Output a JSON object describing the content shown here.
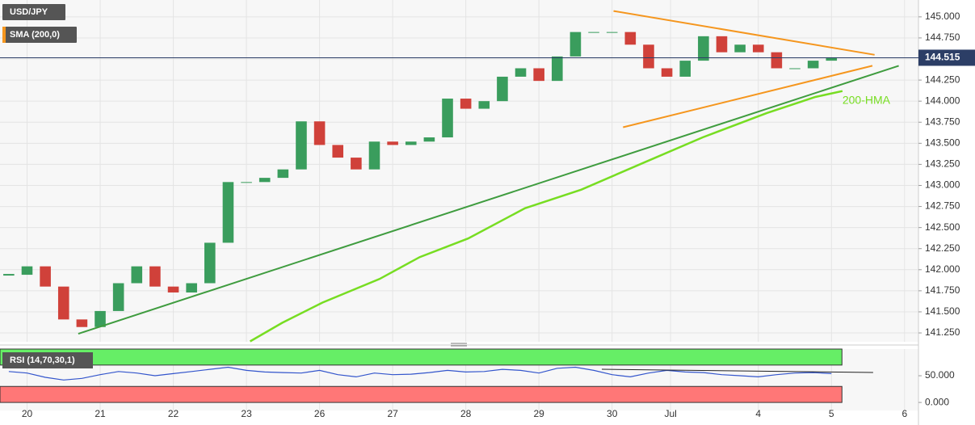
{
  "chart_data": [
    {
      "type": "candlestick",
      "labels": [
        "USD/JPY",
        "SMA (200,0)"
      ],
      "up_color": "#3a9d5d",
      "down_color": "#d0413a",
      "x": [
        -0.25,
        0,
        0.25,
        0.5,
        0.75,
        1,
        1.25,
        1.5,
        1.75,
        2,
        2.25,
        2.5,
        2.75,
        3,
        3.25,
        3.5,
        3.75,
        4,
        4.25,
        4.5,
        4.75,
        5,
        5.25,
        5.5,
        5.75,
        6,
        6.25,
        6.5,
        6.75,
        7,
        7.25,
        7.5,
        7.75,
        8,
        8.25,
        8.5,
        8.75,
        9,
        9.25,
        9.5,
        9.75,
        10,
        10.25,
        10.5,
        10.75,
        11
      ],
      "values": [
        141.94,
        142.04,
        141.8,
        141.41,
        141.32,
        141.51,
        141.84,
        142.04,
        141.8,
        141.73,
        141.84,
        142.32,
        143.04,
        143.04,
        143.09,
        143.19,
        143.76,
        143.48,
        143.33,
        143.19,
        143.52,
        143.48,
        143.52,
        143.57,
        144.03,
        143.91,
        144.0,
        144.29,
        144.39,
        144.24,
        144.53,
        144.82,
        144.82,
        144.82,
        144.67,
        144.39,
        144.29,
        144.48,
        144.77,
        144.58,
        144.67,
        144.58,
        144.39,
        144.39,
        144.48,
        144.52
      ],
      "xlim": [
        -0.37,
        12.19
      ],
      "ylim": [
        141.145,
        145.2
      ],
      "yticks": [
        {
          "value": 141.25,
          "label": "141.250"
        },
        {
          "value": 141.5,
          "label": "141.500"
        },
        {
          "value": 141.75,
          "label": "141.750"
        },
        {
          "value": 142,
          "label": "142.000"
        },
        {
          "value": 142.25,
          "label": "142.250"
        },
        {
          "value": 142.5,
          "label": "142.500"
        },
        {
          "value": 142.75,
          "label": "142.750"
        },
        {
          "value": 143,
          "label": "143.000"
        },
        {
          "value": 143.25,
          "label": "143.250"
        },
        {
          "value": 143.5,
          "label": "143.500"
        },
        {
          "value": 143.75,
          "label": "143.750"
        },
        {
          "value": 144,
          "label": "144.000"
        },
        {
          "value": 144.25,
          "label": "144.250"
        },
        {
          "value": 144.5,
          "label": "144.500"
        },
        {
          "value": 144.75,
          "label": "144.750"
        },
        {
          "value": 145,
          "label": "145.000"
        }
      ],
      "grid": true,
      "last_price": 144.515,
      "trend_lines": [
        {
          "color": "#f5961e",
          "x": [
            8.02,
            11.59
          ],
          "values": [
            145.07,
            144.55
          ]
        },
        {
          "color": "#f5961e",
          "x": [
            8.15,
            11.56
          ],
          "values": [
            143.69,
            144.42
          ]
        },
        {
          "color": "#3f9c3f",
          "x": [
            0.7,
            11.92
          ],
          "values": [
            141.24,
            144.42
          ]
        }
      ],
      "series": [
        {
          "name": "200-HMA",
          "color": "#77dd22",
          "x": [
            3.05,
            3.49,
            4.04,
            4.82,
            5.37,
            6.03,
            6.81,
            7.58,
            8.46,
            9.24,
            10.12,
            10.78,
            11.15
          ],
          "values": [
            141.15,
            141.37,
            141.61,
            141.89,
            142.15,
            142.37,
            142.73,
            142.95,
            143.28,
            143.57,
            143.86,
            144.05,
            144.12
          ]
        }
      ]
    },
    {
      "type": "rsi",
      "title": "RSI (14,70,30,1)",
      "color": "#3355cc",
      "x": [
        -0.25,
        0,
        0.25,
        0.5,
        0.75,
        1,
        1.25,
        1.5,
        1.75,
        2,
        2.25,
        2.5,
        2.75,
        3,
        3.25,
        3.5,
        3.75,
        4,
        4.25,
        4.5,
        4.75,
        5,
        5.25,
        5.5,
        5.75,
        6,
        6.25,
        6.5,
        6.75,
        7,
        7.25,
        7.5,
        7.75,
        8,
        8.25,
        8.5,
        8.75,
        9,
        9.25,
        9.5,
        9.75,
        10,
        10.25,
        10.5,
        10.75,
        11
      ],
      "values": [
        58,
        55,
        47,
        42,
        45,
        52,
        58,
        55,
        50,
        54,
        58,
        62,
        66,
        60,
        57,
        56,
        55,
        60,
        52,
        48,
        55,
        52,
        53,
        56,
        60,
        57,
        58,
        62,
        60,
        55,
        64,
        66,
        60,
        52,
        48,
        55,
        60,
        57,
        56,
        52,
        50,
        48,
        52,
        55,
        56,
        54
      ],
      "overbought": 70,
      "oversold": 30,
      "xlim": [
        -0.37,
        12.19
      ],
      "ylim": [
        -15,
        100
      ],
      "yticks": [
        {
          "value": 50,
          "label": "50.000"
        },
        {
          "value": 0,
          "label": "0.000"
        }
      ],
      "xticks": [
        {
          "value": 0,
          "label": "20"
        },
        {
          "value": 1,
          "label": "21"
        },
        {
          "value": 2,
          "label": "22"
        },
        {
          "value": 3,
          "label": "23"
        },
        {
          "value": 4,
          "label": "26"
        },
        {
          "value": 5,
          "label": "27"
        },
        {
          "value": 6,
          "label": "28"
        },
        {
          "value": 7,
          "label": "29"
        },
        {
          "value": 8,
          "label": "30"
        },
        {
          "value": 8.8,
          "label": "Jul"
        },
        {
          "value": 10,
          "label": "4"
        },
        {
          "value": 11,
          "label": "5"
        },
        {
          "value": 12,
          "label": "6"
        }
      ],
      "trend_line": {
        "x": [
          7.86,
          11.57
        ],
        "values": [
          62.1,
          56.1
        ]
      }
    }
  ]
}
